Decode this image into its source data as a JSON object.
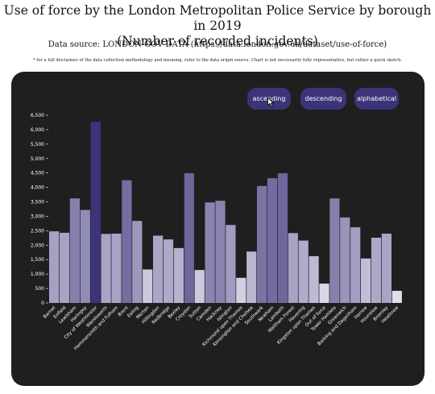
{
  "header": {
    "title_line1": "Use of force by the London Metropolitan Police Service by borough in 2019",
    "title_line2": "(Number of recorded incidents)",
    "source": "Data source: LONDON GOV DATA (https://data.london.gov.uk/dataset/use-of-force)",
    "disclaimer": "* for a full disclaimer of the data collection methodology and meaning, refer to the data origin source. Chart is not necessarily fully representative, but rather a quick sketch."
  },
  "controls": {
    "ascending": "ascending",
    "descending": "descending",
    "alphabetical": "alphabetical"
  },
  "colors": {
    "panel_bg": "#201f20",
    "button_bg": "#3b3479",
    "bar_low": "#ece9f5",
    "bar_high": "#3b3479"
  },
  "chart_data": {
    "type": "bar",
    "title": "",
    "xlabel": "",
    "ylabel": "",
    "ylim": [
      0,
      6500
    ],
    "yticks": [
      0,
      500,
      1000,
      1500,
      2000,
      2500,
      3000,
      3500,
      4000,
      4500,
      5000,
      5500,
      6000,
      6500
    ],
    "ytick_labels": [
      "0",
      "500",
      "1,000",
      "1,500",
      "2,000",
      "2,500",
      "3,000",
      "3,500",
      "4,000",
      "4,500",
      "5,000",
      "5,500",
      "6,000",
      "6,500"
    ],
    "grid": false,
    "categories": [
      "Barnet",
      "Enfield",
      "Lewisham",
      "Haringey",
      "City of Westminster",
      "Wandsworth",
      "Hammersmith and Fulham",
      "Brent",
      "Ealing",
      "Merton",
      "Hillingdon",
      "Redbridge",
      "Bexley",
      "Croydon",
      "Sutton",
      "Camden",
      "Hackney",
      "Islington",
      "Richmond upon Thames",
      "Kensington and Chelsea",
      "Southwark",
      "Newham",
      "Lambeth",
      "Waltham Forest",
      "Havering",
      "Kingston upon Thames",
      "Out of force",
      "Tower Hamlets",
      "Greenwich",
      "Barking and Dagenham",
      "Harrow",
      "Hounslow",
      "Bromley",
      "Heathrow"
    ],
    "values": [
      2480,
      2430,
      3620,
      3220,
      6270,
      2390,
      2400,
      4250,
      2840,
      1160,
      2330,
      2200,
      1900,
      4490,
      1140,
      3480,
      3540,
      2700,
      870,
      1780,
      4050,
      4320,
      4490,
      2420,
      2160,
      1620,
      670,
      3620,
      2960,
      2620,
      1540,
      2260,
      2400,
      420
    ]
  }
}
